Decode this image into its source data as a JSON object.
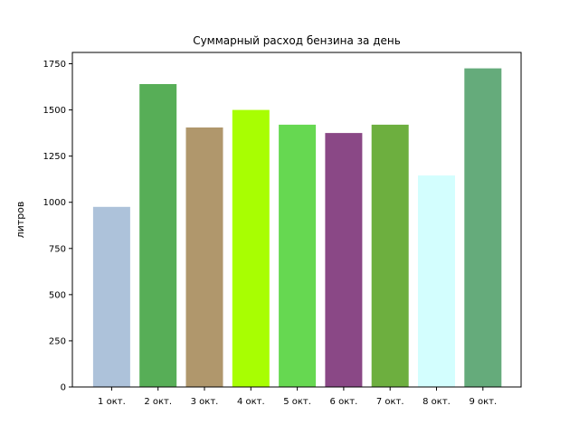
{
  "chart_data": {
    "type": "bar",
    "title": "Суммарный расход бензина за день",
    "xlabel": "",
    "ylabel": "литров",
    "categories": [
      "1 окт.",
      "2 окт.",
      "3 окт.",
      "4 окт.",
      "5 окт.",
      "6 окт.",
      "7 окт.",
      "8 окт.",
      "9 окт."
    ],
    "values": [
      975,
      1640,
      1405,
      1500,
      1420,
      1375,
      1420,
      1145,
      1725
    ],
    "colors": [
      "#adc2da",
      "#57ae57",
      "#b0976c",
      "#a8fe02",
      "#66d851",
      "#8a4886",
      "#6daf3f",
      "#d3fefe",
      "#65ab7b"
    ],
    "ylim": [
      0,
      1811.25
    ],
    "yticks": [
      0,
      250,
      500,
      750,
      1000,
      1250,
      1500,
      1750
    ],
    "grid": false,
    "legend": "none"
  }
}
